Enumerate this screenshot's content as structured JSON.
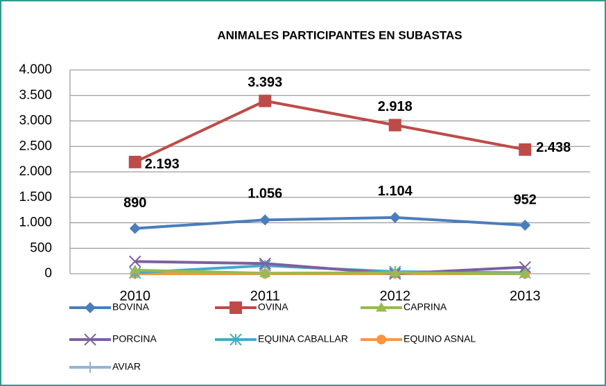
{
  "chart_data": {
    "type": "line",
    "title": "ANIMALES PARTICIPANTES EN SUBASTAS",
    "categories": [
      "2010",
      "2011",
      "2012",
      "2013"
    ],
    "ylim": [
      0,
      4000
    ],
    "yticks": [
      0,
      500,
      {
        "value": 1000,
        "label": "1.000"
      },
      {
        "value": 1500,
        "label": "1.500"
      },
      {
        "value": 2000,
        "label": "2.000"
      },
      {
        "value": 2500,
        "label": "2.500"
      },
      {
        "value": 3000,
        "label": "3.000"
      },
      {
        "value": 3500,
        "label": "3.500"
      },
      {
        "value": 4000,
        "label": "4.000"
      }
    ],
    "grid": true,
    "legend": "bottom",
    "series": [
      {
        "name": "BOVINA",
        "color": "#4a7ebb",
        "marker": "diamond",
        "values": [
          890,
          1056,
          1104,
          952
        ],
        "value_labels": [
          "890",
          "1.056",
          "1.104",
          "952"
        ]
      },
      {
        "name": "OVINA",
        "color": "#be4b48",
        "marker": "square",
        "values": [
          2193,
          3393,
          2918,
          2438
        ],
        "value_labels": [
          "2.193",
          "3.393",
          "2.918",
          "2.438"
        ]
      },
      {
        "name": "CAPRINA",
        "color": "#98b954",
        "marker": "triangle",
        "values": [
          70,
          10,
          20,
          0
        ]
      },
      {
        "name": "PORCINA",
        "color": "#7d60a0",
        "marker": "x",
        "values": [
          240,
          200,
          0,
          130
        ]
      },
      {
        "name": "EQUINA CABALLAR",
        "color": "#46aac5",
        "marker": "star",
        "values": [
          20,
          160,
          40,
          20
        ]
      },
      {
        "name": "EQUINO ASNAL",
        "color": "#f79646",
        "marker": "circle",
        "values": [
          0,
          0,
          0,
          0
        ]
      },
      {
        "name": "AVIAR",
        "color": "#95b3d7",
        "marker": "plus",
        "values": [
          5,
          5,
          5,
          5
        ]
      }
    ]
  }
}
